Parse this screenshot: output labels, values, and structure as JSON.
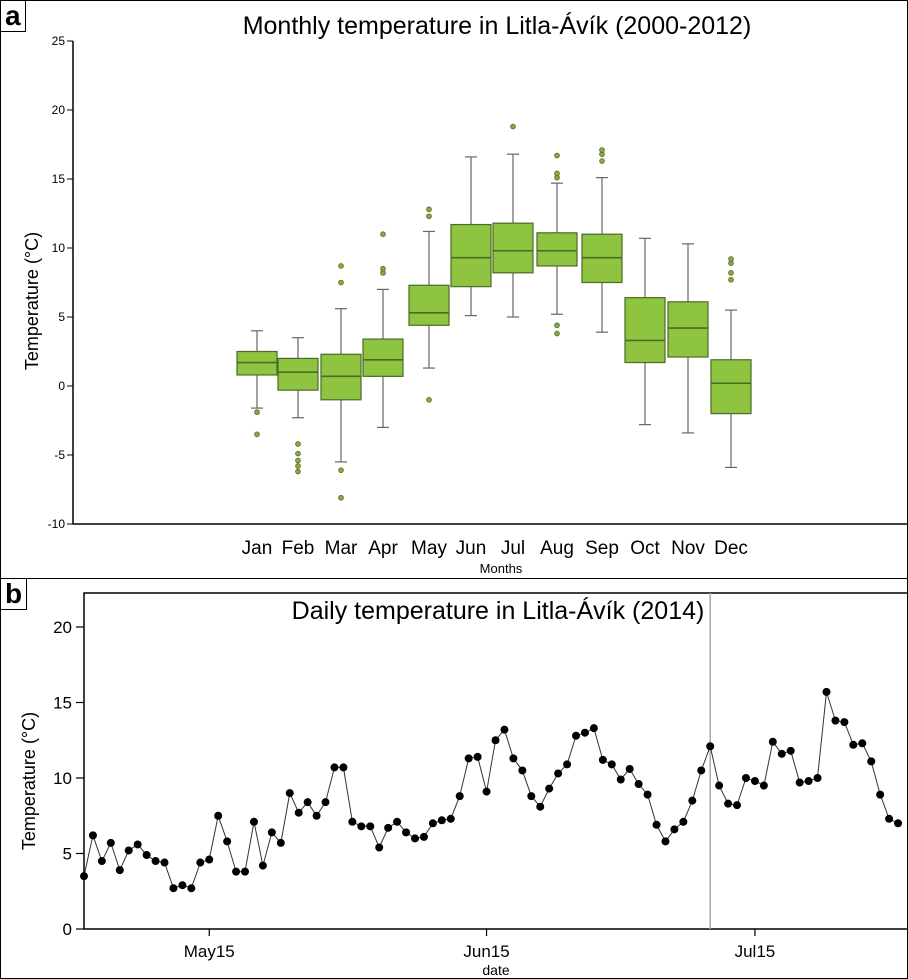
{
  "panels": {
    "a_label": "a",
    "b_label": "b"
  },
  "chart_data": [
    {
      "type": "box",
      "title": "Monthly temperature in Litla-Ávík (2000-2012)",
      "xlabel": "Months",
      "ylabel": "Temperature (°C)",
      "ylim": [
        -10,
        25
      ],
      "yticks": [
        -10,
        -5,
        0,
        5,
        10,
        15,
        20,
        25
      ],
      "grid": false,
      "box_color": "#8fc440",
      "box_stroke": "#4b6a25",
      "categories": [
        "Jan",
        "Feb",
        "Mar",
        "Apr",
        "May",
        "Jun",
        "Jul",
        "Aug",
        "Sep",
        "Oct",
        "Nov",
        "Dec"
      ],
      "boxes": [
        {
          "min": -1.6,
          "q1": 0.8,
          "median": 1.7,
          "q3": 2.5,
          "max": 4.0,
          "outliers": [
            -1.9,
            -3.5
          ]
        },
        {
          "min": -2.3,
          "q1": -0.3,
          "median": 1.0,
          "q3": 2.0,
          "max": 3.5,
          "outliers": [
            -4.2,
            -4.9,
            -5.4,
            -5.8,
            -6.2
          ]
        },
        {
          "min": -5.5,
          "q1": -1.0,
          "median": 0.7,
          "q3": 2.3,
          "max": 5.6,
          "outliers": [
            -6.1,
            -8.1,
            7.5,
            8.7
          ]
        },
        {
          "min": -3.0,
          "q1": 0.7,
          "median": 1.9,
          "q3": 3.4,
          "max": 7.0,
          "outliers": [
            8.2,
            8.5,
            11.0
          ]
        },
        {
          "min": 1.3,
          "q1": 4.4,
          "median": 5.3,
          "q3": 7.3,
          "max": 11.2,
          "outliers": [
            -1.0,
            12.3,
            12.8
          ]
        },
        {
          "min": 5.1,
          "q1": 7.2,
          "median": 9.3,
          "q3": 11.7,
          "max": 16.6,
          "outliers": []
        },
        {
          "min": 5.0,
          "q1": 8.2,
          "median": 9.8,
          "q3": 11.8,
          "max": 16.8,
          "outliers": [
            18.8
          ]
        },
        {
          "min": 5.2,
          "q1": 8.7,
          "median": 9.8,
          "q3": 11.1,
          "max": 14.7,
          "outliers": [
            3.8,
            4.4,
            15.1,
            15.4,
            16.7
          ]
        },
        {
          "min": 3.9,
          "q1": 7.5,
          "median": 9.3,
          "q3": 11.0,
          "max": 15.1,
          "outliers": [
            16.3,
            16.8,
            17.1
          ]
        },
        {
          "min": -2.8,
          "q1": 1.7,
          "median": 3.3,
          "q3": 6.4,
          "max": 10.7,
          "outliers": []
        },
        {
          "min": -3.4,
          "q1": 2.1,
          "median": 4.2,
          "q3": 6.1,
          "max": 10.3,
          "outliers": []
        },
        {
          "min": -5.9,
          "q1": -2.0,
          "median": 0.2,
          "q3": 1.9,
          "max": 5.5,
          "outliers": [
            7.7,
            8.2,
            8.9,
            9.2
          ]
        }
      ]
    },
    {
      "type": "line",
      "title": "Daily temperature in Litla-Ávík (2014)",
      "xlabel": "date",
      "ylabel": "Temperature (°C)",
      "ylim": [
        0,
        20
      ],
      "yticks": [
        0,
        5,
        10,
        15,
        20
      ],
      "xticks": [
        {
          "date": "2014-05-15",
          "label": "May15"
        },
        {
          "date": "2014-06-15",
          "label": "Jun15"
        },
        {
          "date": "2014-07-15",
          "label": "Jul15"
        }
      ],
      "xrange": [
        "2014-05-01",
        "2014-08-01"
      ],
      "reference_line_date": "2014-07-10",
      "grid": false,
      "series": [
        {
          "x": [
            "2014-05-01",
            "2014-05-02",
            "2014-05-03",
            "2014-05-04",
            "2014-05-05",
            "2014-05-06",
            "2014-05-07",
            "2014-05-08",
            "2014-05-09",
            "2014-05-10",
            "2014-05-11",
            "2014-05-12",
            "2014-05-13",
            "2014-05-14",
            "2014-05-15",
            "2014-05-16",
            "2014-05-17",
            "2014-05-18",
            "2014-05-19",
            "2014-05-20",
            "2014-05-21",
            "2014-05-22",
            "2014-05-23",
            "2014-05-24",
            "2014-05-25",
            "2014-05-26",
            "2014-05-27",
            "2014-05-28",
            "2014-05-29",
            "2014-05-30",
            "2014-05-31",
            "2014-06-01",
            "2014-06-02",
            "2014-06-03",
            "2014-06-04",
            "2014-06-05",
            "2014-06-06",
            "2014-06-07",
            "2014-06-08",
            "2014-06-09",
            "2014-06-10",
            "2014-06-11",
            "2014-06-12",
            "2014-06-13",
            "2014-06-14",
            "2014-06-15",
            "2014-06-16",
            "2014-06-17",
            "2014-06-18",
            "2014-06-19",
            "2014-06-20",
            "2014-06-21",
            "2014-06-22",
            "2014-06-23",
            "2014-06-24",
            "2014-06-25",
            "2014-06-26",
            "2014-06-27",
            "2014-06-28",
            "2014-06-29",
            "2014-06-30",
            "2014-07-01",
            "2014-07-02",
            "2014-07-03",
            "2014-07-04",
            "2014-07-05",
            "2014-07-06",
            "2014-07-07",
            "2014-07-08",
            "2014-07-09",
            "2014-07-10",
            "2014-07-11",
            "2014-07-12",
            "2014-07-13",
            "2014-07-14",
            "2014-07-15",
            "2014-07-16",
            "2014-07-17",
            "2014-07-18",
            "2014-07-19",
            "2014-07-20",
            "2014-07-21",
            "2014-07-22",
            "2014-07-23",
            "2014-07-24",
            "2014-07-25",
            "2014-07-26",
            "2014-07-27",
            "2014-07-28",
            "2014-07-29",
            "2014-07-30",
            "2014-07-31"
          ],
          "y": [
            3.5,
            6.2,
            4.5,
            5.7,
            3.9,
            5.2,
            5.6,
            4.9,
            4.5,
            4.4,
            2.7,
            2.9,
            2.7,
            4.4,
            4.6,
            7.5,
            5.8,
            3.8,
            3.8,
            7.1,
            4.2,
            6.4,
            5.7,
            9.0,
            7.7,
            8.4,
            7.5,
            8.4,
            10.7,
            10.7,
            7.1,
            6.8,
            6.8,
            5.4,
            6.7,
            7.1,
            6.4,
            6.0,
            6.1,
            7.0,
            7.2,
            7.3,
            8.8,
            11.3,
            11.4,
            9.1,
            12.5,
            13.2,
            11.3,
            10.5,
            8.8,
            8.1,
            9.3,
            10.3,
            10.9,
            12.8,
            13.0,
            13.3,
            11.2,
            10.9,
            9.9,
            10.6,
            9.6,
            8.9,
            6.9,
            5.8,
            6.6,
            7.1,
            8.5,
            10.5,
            12.1,
            9.5,
            8.3,
            8.2,
            10.0,
            9.8,
            9.5,
            12.4,
            11.6,
            11.8,
            9.7,
            9.8,
            10.0,
            15.7,
            13.8,
            13.7,
            12.2,
            12.3,
            11.1,
            8.9,
            7.3,
            7.0
          ]
        }
      ]
    }
  ]
}
